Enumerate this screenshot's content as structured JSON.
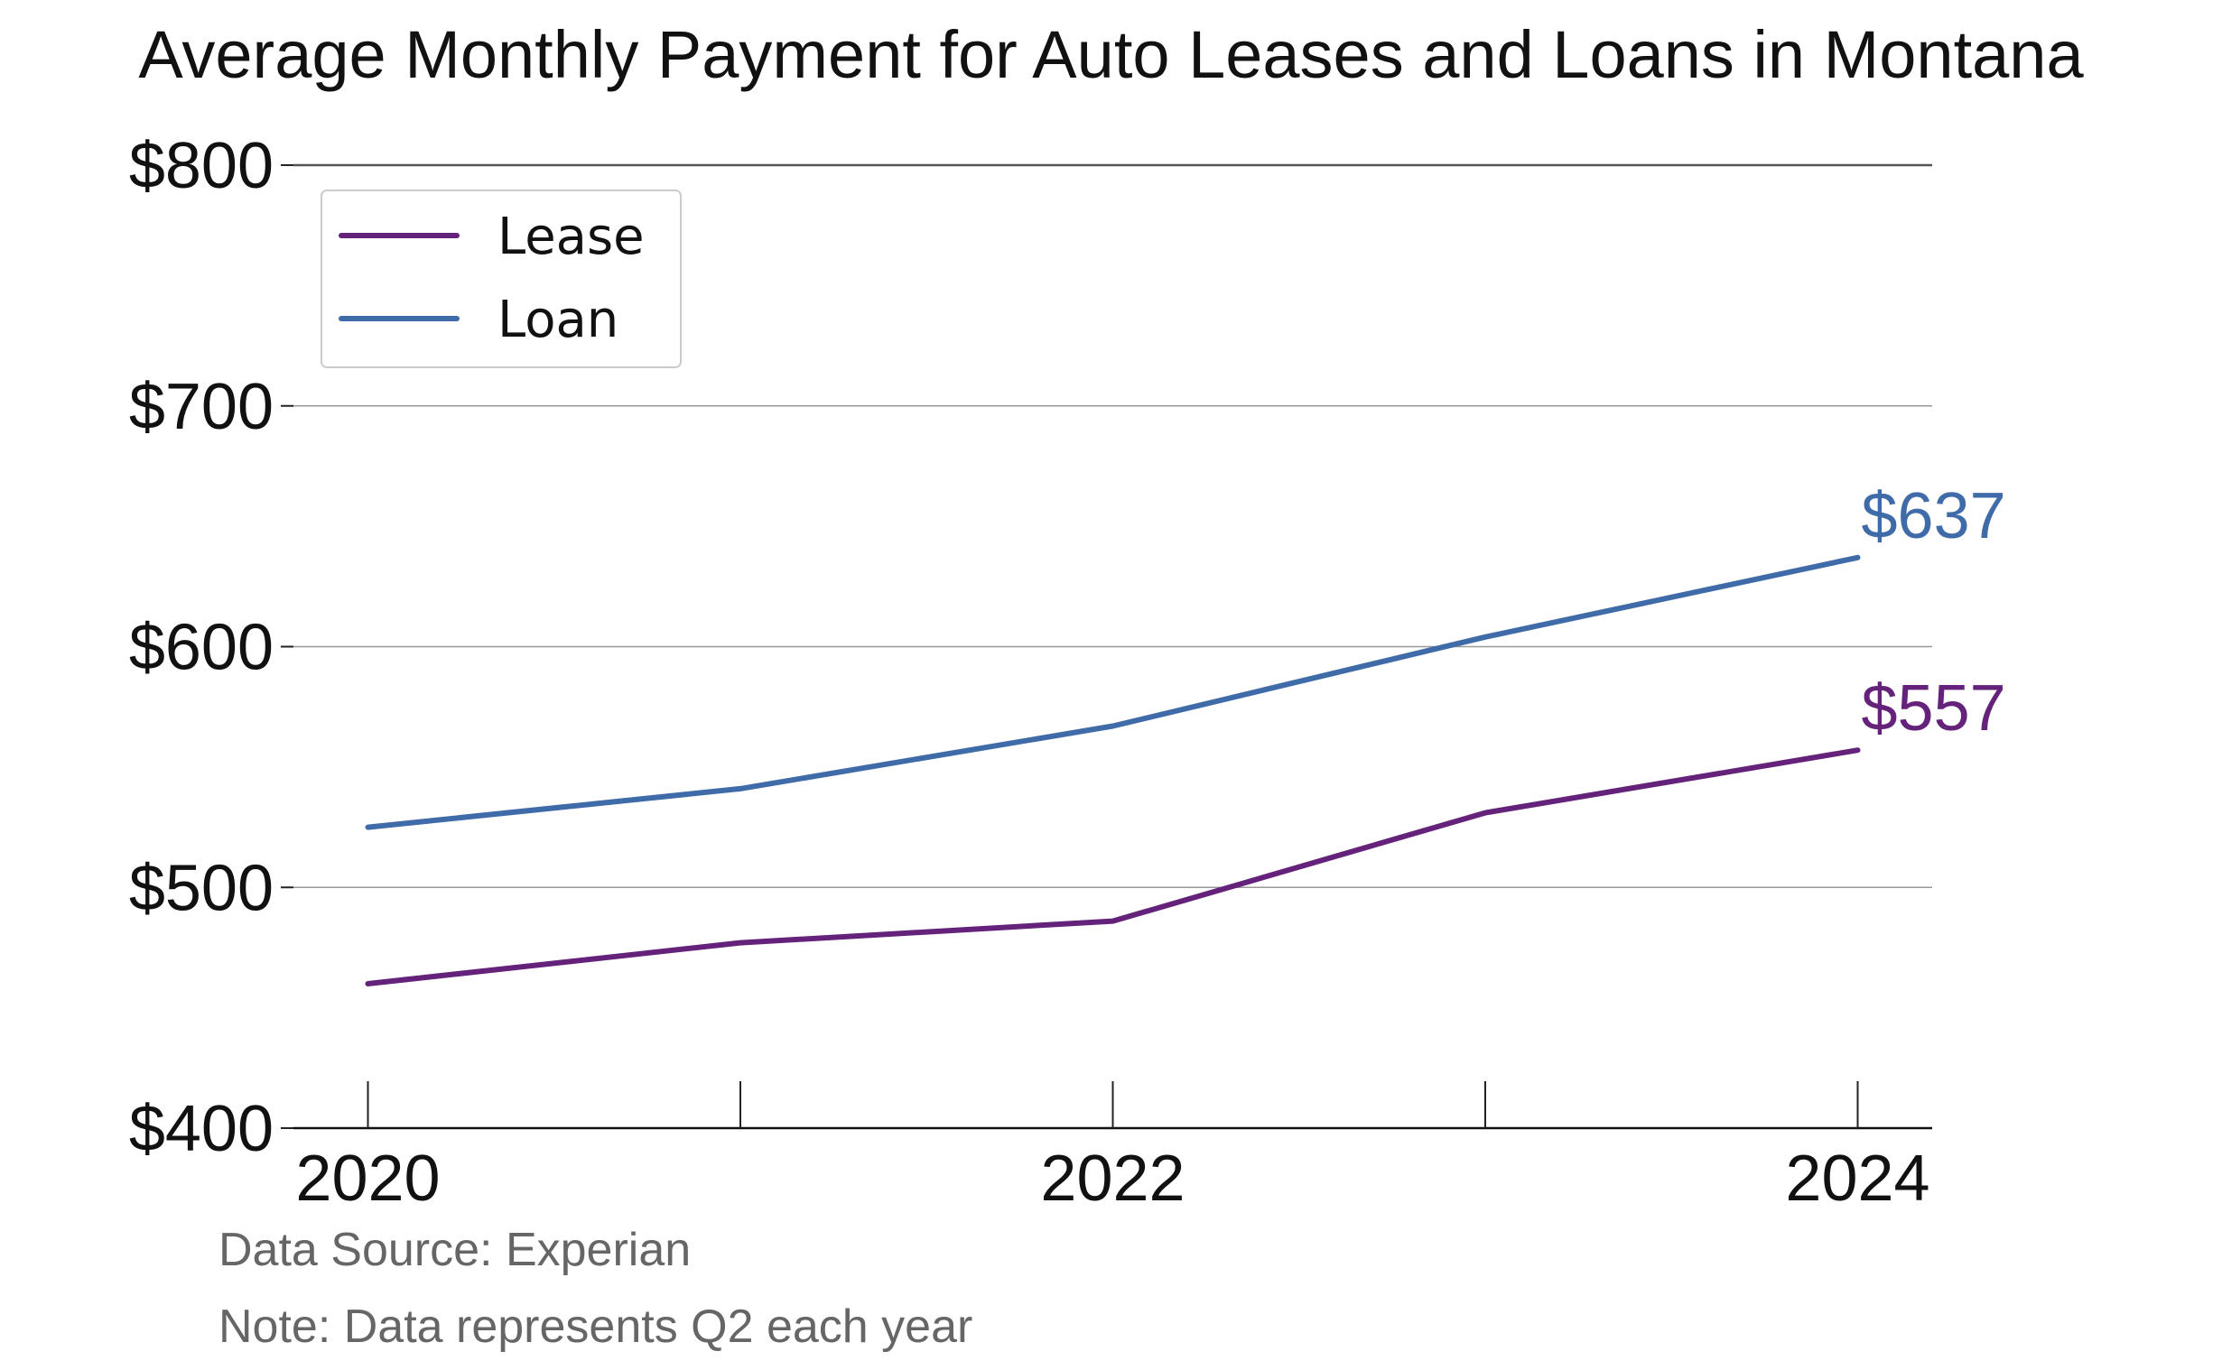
{
  "chart_data": {
    "type": "line",
    "title": "Average Monthly Payment for Auto Leases and Loans in Montana",
    "x": [
      2020,
      2021,
      2022,
      2023,
      2024
    ],
    "x_tick_labels": [
      "2020",
      "2022",
      "2024"
    ],
    "x_tick_values": [
      2020,
      2022,
      2024
    ],
    "xlim": [
      2019.8,
      2024.2
    ],
    "ylim": [
      400,
      800
    ],
    "y_ticks": [
      400,
      500,
      600,
      700,
      800
    ],
    "y_tick_labels": [
      "$400",
      "$500",
      "$600",
      "$700",
      "$800"
    ],
    "grid": "horizontal",
    "legend_position": "top-left",
    "series": [
      {
        "name": "Lease",
        "values": [
          460,
          477,
          486,
          531,
          557
        ],
        "color": "#65227A",
        "end_label": "$557"
      },
      {
        "name": "Loan",
        "values": [
          525,
          541,
          567,
          604,
          637
        ],
        "color": "#3F6CA8",
        "end_label": "$637"
      }
    ]
  },
  "notes": {
    "source": "Data Source: Experian",
    "note": "Note: Data represents Q2 each year"
  }
}
